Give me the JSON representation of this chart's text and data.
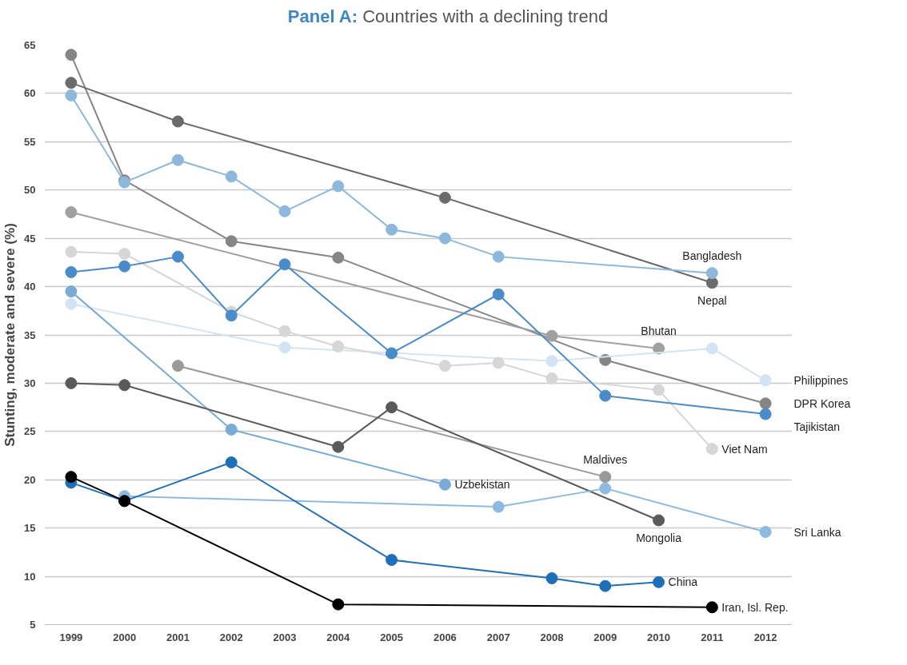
{
  "chart_data": {
    "type": "line",
    "title": "Panel A: Countries with a declining trend",
    "ylabel": "Stunting, moderate and severe (%)",
    "xlim": [
      1998.5,
      2012.5
    ],
    "xticks": [
      1999,
      2000,
      2001,
      2002,
      2003,
      2004,
      2005,
      2006,
      2007,
      2008,
      2009,
      2010,
      2011,
      2012
    ],
    "ylim": [
      5,
      65
    ],
    "yticks": [
      5,
      10,
      15,
      20,
      25,
      30,
      35,
      40,
      45,
      50,
      55,
      60,
      65
    ],
    "grid": "y",
    "marker": "circle",
    "line_style": "solid",
    "legend": false,
    "series": [
      {
        "name": "DPR Korea",
        "color": "#858585",
        "x": [
          1999,
          2000,
          2002,
          2004,
          2009,
          2012
        ],
        "values": [
          64.0,
          51.0,
          44.7,
          43.0,
          32.4,
          27.9
        ]
      },
      {
        "name": "Nepal",
        "color": "#6b6b6b",
        "x": [
          1999,
          2001,
          2006,
          2011
        ],
        "values": [
          61.1,
          57.1,
          49.2,
          40.4
        ]
      },
      {
        "name": "Bangladesh",
        "color": "#8db8dc",
        "x": [
          1999,
          2000,
          2001,
          2002,
          2003,
          2004,
          2005,
          2006,
          2007,
          2011
        ],
        "values": [
          59.8,
          50.8,
          53.1,
          51.4,
          47.8,
          50.4,
          45.9,
          45.0,
          43.1,
          41.4
        ]
      },
      {
        "name": "Bhutan",
        "color": "#a0a0a0",
        "x": [
          1999,
          2008,
          2010
        ],
        "values": [
          47.7,
          34.9,
          33.6
        ]
      },
      {
        "name": "Philippines",
        "color": "#d2e3f3",
        "x": [
          1999,
          2003,
          2008,
          2011,
          2012
        ],
        "values": [
          38.2,
          33.7,
          32.3,
          33.6,
          30.3
        ]
      },
      {
        "name": "Viet Nam",
        "color": "#d6d6d6",
        "x": [
          1999,
          2000,
          2002,
          2003,
          2004,
          2006,
          2007,
          2008,
          2010,
          2011
        ],
        "values": [
          43.6,
          43.4,
          37.4,
          35.4,
          33.8,
          31.8,
          32.1,
          30.5,
          29.3,
          23.2
        ]
      },
      {
        "name": "Tajikistan",
        "color": "#4a8bc9",
        "x": [
          1999,
          2000,
          2001,
          2002,
          2003,
          2005,
          2007,
          2009,
          2012
        ],
        "values": [
          41.5,
          42.1,
          43.1,
          37.0,
          42.3,
          33.1,
          39.2,
          28.7,
          26.8
        ]
      },
      {
        "name": "Uzbekistan",
        "color": "#7aaad6",
        "x": [
          1999,
          2002,
          2006
        ],
        "values": [
          39.5,
          25.2,
          19.5
        ]
      },
      {
        "name": "Maldives",
        "color": "#999999",
        "x": [
          2001,
          2009
        ],
        "values": [
          31.8,
          20.3
        ]
      },
      {
        "name": "Mongolia",
        "color": "#5a5a5a",
        "x": [
          1999,
          2000,
          2004,
          2005,
          2010
        ],
        "values": [
          30.0,
          29.8,
          23.4,
          27.5,
          15.8
        ]
      },
      {
        "name": "Sri Lanka",
        "color": "#8fbae0",
        "x": [
          2000,
          2007,
          2009,
          2012
        ],
        "values": [
          18.3,
          17.2,
          19.1,
          14.6
        ]
      },
      {
        "name": "China",
        "color": "#1f6fb8",
        "x": [
          1999,
          2000,
          2002,
          2005,
          2008,
          2009,
          2010
        ],
        "values": [
          19.7,
          17.8,
          21.8,
          11.7,
          9.8,
          9.0,
          9.4
        ]
      },
      {
        "name": "Iran, Isl. Rep.",
        "color": "#000000",
        "x": [
          1999,
          2000,
          2004,
          2011
        ],
        "values": [
          20.3,
          17.8,
          7.1,
          6.8
        ]
      }
    ]
  }
}
